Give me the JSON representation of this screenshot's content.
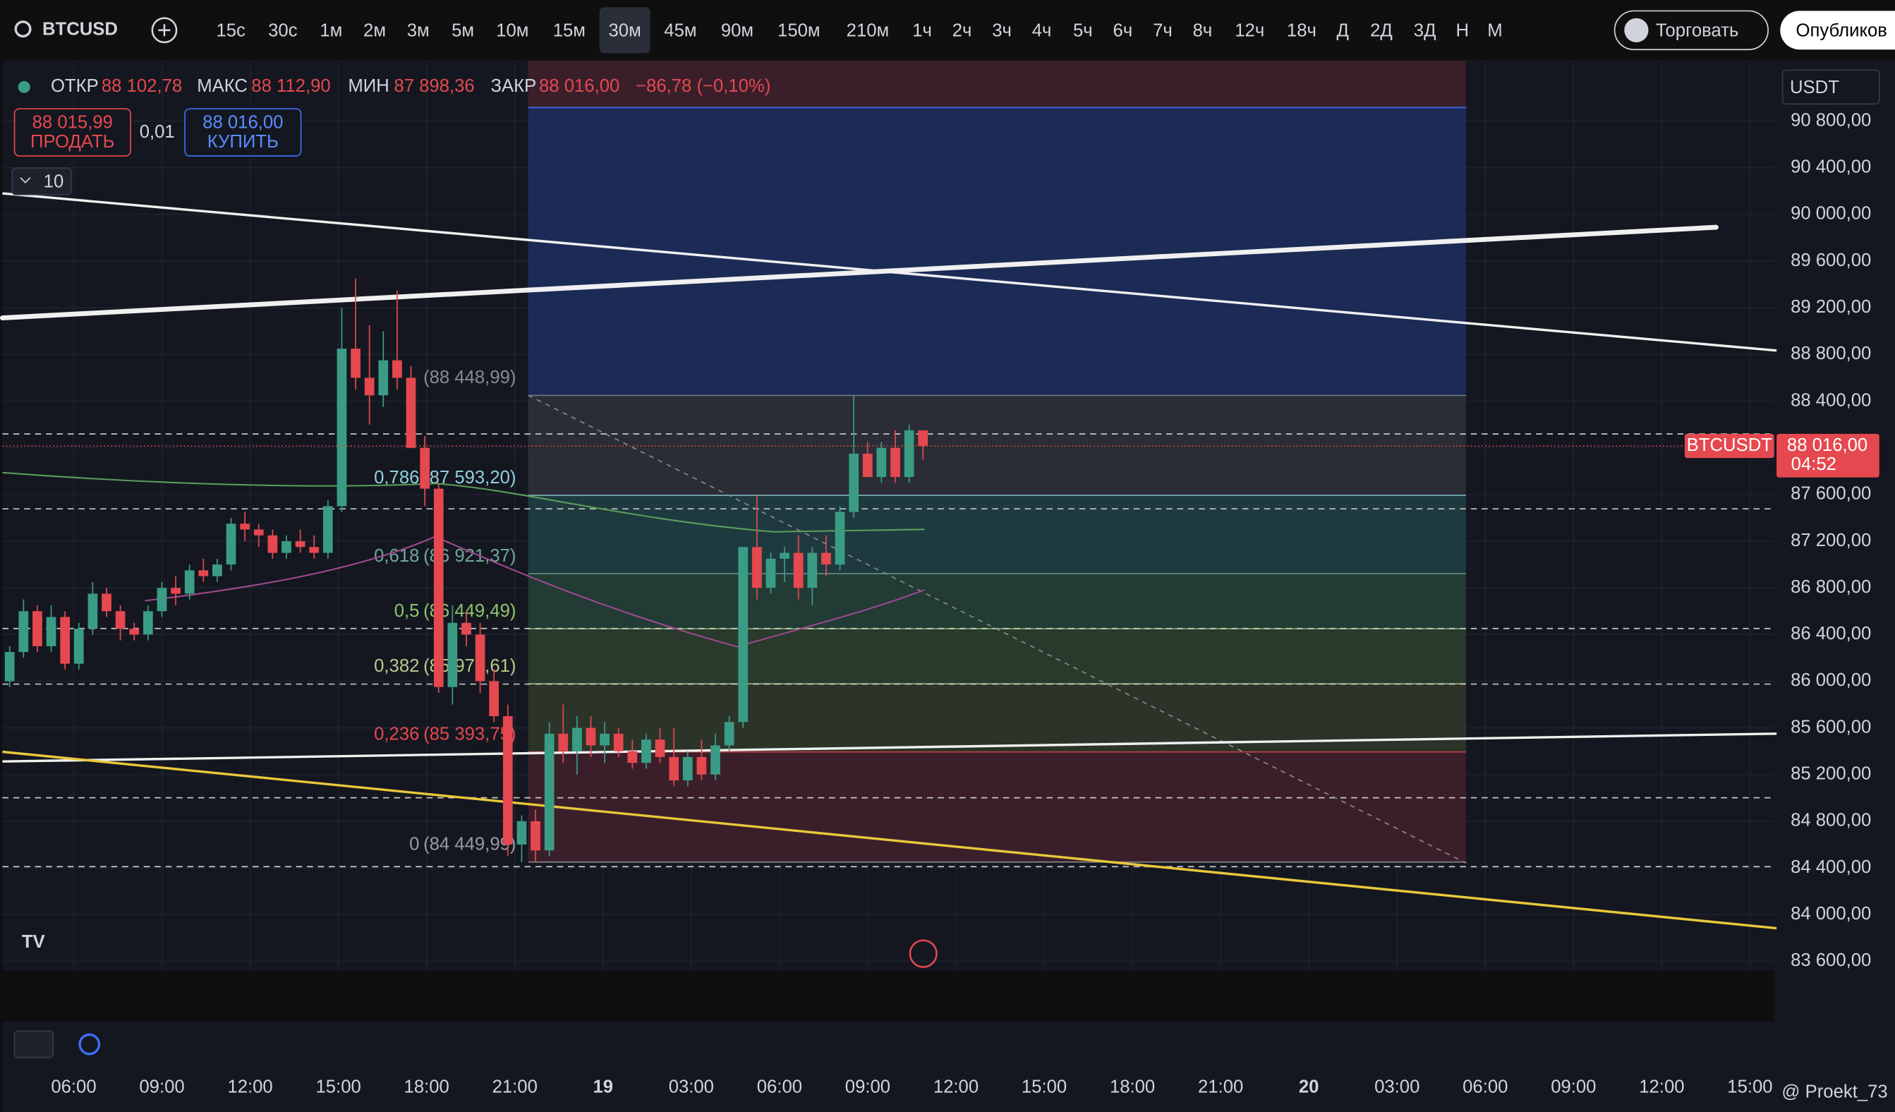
{
  "toolbar": {
    "symbol": "BTCUSD",
    "intervals": [
      "15с",
      "30с",
      "1м",
      "2м",
      "3м",
      "5м",
      "10м",
      "15м",
      "30м",
      "45м",
      "90м",
      "150м",
      "210м",
      "1ч",
      "2ч",
      "3ч",
      "4ч",
      "5ч",
      "6ч",
      "7ч",
      "8ч",
      "12ч",
      "18ч",
      "Д",
      "2Д",
      "3Д",
      "Н",
      "М"
    ],
    "active_interval": 8,
    "trade_button": "Торговать",
    "publish_button": "Опубликов"
  },
  "legend": {
    "open_label": "ОТКР",
    "open": "88 102,78",
    "high_label": "МАКС",
    "high": "88 112,90",
    "low_label": "МИН",
    "low": "87 898,36",
    "close_label": "ЗАКР",
    "close": "88 016,00",
    "change": "−86,78 (−0,10%)"
  },
  "order": {
    "sell_price": "88 015,99",
    "sell_label": "ПРОДАТЬ",
    "spread": "0,01",
    "buy_price": "88 016,00",
    "buy_label": "КУПИТЬ"
  },
  "indicators_count": "10",
  "currency": "USDT",
  "price_badge": {
    "symbol": "BTCUSDT",
    "price": {
      "value": 88016,
      "label": "88 016,00"
    },
    "countdown": "04:52"
  },
  "footer": {
    "credit": "@ Proekt_73"
  },
  "chart_data": {
    "type": "candlestick",
    "open": [
      86000,
      86250,
      86600,
      86300,
      86550,
      86150,
      86450,
      86750,
      86600,
      86450,
      86400,
      86600,
      86800,
      86750,
      86950,
      86900,
      87000,
      87350,
      87300,
      87250,
      87100,
      87200,
      87150,
      87100,
      87500,
      88850,
      88600,
      88450,
      88750,
      88600,
      88000,
      87650,
      85950,
      86500,
      86400,
      86000,
      85700,
      84600,
      84800,
      84550,
      85550,
      85400,
      85600,
      85450,
      85550,
      85400,
      85300,
      85500,
      85350,
      85150,
      85350,
      85200,
      85450,
      85650,
      87150,
      86800,
      87050,
      87100,
      86800,
      87100,
      87000,
      87450,
      87950,
      87750,
      88000,
      87750,
      88150
    ],
    "high": [
      86300,
      86700,
      86650,
      86650,
      86600,
      86500,
      86850,
      86800,
      86650,
      86500,
      86650,
      86850,
      86900,
      87000,
      87050,
      87050,
      87400,
      87450,
      87350,
      87300,
      87250,
      87300,
      87250,
      87550,
      89200,
      89450,
      89050,
      89000,
      89350,
      88700,
      88100,
      87700,
      86650,
      86600,
      86500,
      86100,
      85800,
      84850,
      84900,
      85650,
      85800,
      85700,
      85700,
      85650,
      85600,
      85500,
      85550,
      85600,
      85600,
      85400,
      85500,
      85550,
      85700,
      87150,
      87600,
      87100,
      87150,
      87250,
      87150,
      87250,
      87500,
      88450,
      88050,
      88050,
      88150,
      88200,
      88150
    ],
    "low": [
      85950,
      86200,
      86250,
      86250,
      86100,
      86100,
      86400,
      86550,
      86350,
      86350,
      86350,
      86550,
      86650,
      86700,
      86850,
      86850,
      86950,
      87200,
      87150,
      87050,
      87050,
      87100,
      87050,
      87050,
      87450,
      88500,
      88200,
      88350,
      88500,
      88000,
      87500,
      85900,
      85800,
      86300,
      85900,
      85650,
      84500,
      84450,
      84450,
      84500,
      85300,
      85200,
      85350,
      85300,
      85350,
      85250,
      85250,
      85300,
      85100,
      85100,
      85150,
      85150,
      85400,
      85600,
      86700,
      86750,
      86850,
      86700,
      86650,
      86900,
      86950,
      87400,
      87750,
      87700,
      87700,
      87700,
      87900
    ],
    "close": [
      86250,
      86600,
      86300,
      86550,
      86150,
      86450,
      86750,
      86600,
      86450,
      86400,
      86600,
      86800,
      86750,
      86950,
      86900,
      87000,
      87350,
      87300,
      87250,
      87100,
      87200,
      87150,
      87100,
      87500,
      88850,
      88600,
      88450,
      88750,
      88600,
      88000,
      87650,
      85950,
      86500,
      86400,
      86000,
      85700,
      84600,
      84800,
      84550,
      85550,
      85400,
      85600,
      85450,
      85550,
      85400,
      85300,
      85500,
      85350,
      85150,
      85350,
      85200,
      85450,
      85650,
      87150,
      86800,
      87050,
      87100,
      86800,
      87100,
      87000,
      87450,
      87950,
      87750,
      88000,
      87750,
      88150,
      88016
    ],
    "up_color": "#3a9c85",
    "down_color": "#e5484f",
    "ylim": [
      83520,
      91320
    ],
    "yticks": [
      {
        "value": 90800,
        "label": "90 800,00"
      },
      {
        "value": 90400,
        "label": "90 400,00"
      },
      {
        "value": 90000,
        "label": "90 000,00"
      },
      {
        "value": 89600,
        "label": "89 600,00"
      },
      {
        "value": 89200,
        "label": "89 200,00"
      },
      {
        "value": 88800,
        "label": "88 800,00"
      },
      {
        "value": 88400,
        "label": "88 400,00"
      },
      {
        "value": 88000,
        "label": "88 000,00"
      },
      {
        "value": 87600,
        "label": "87 600,00"
      },
      {
        "value": 87200,
        "label": "87 200,00"
      },
      {
        "value": 86800,
        "label": "86 800,00"
      },
      {
        "value": 86400,
        "label": "86 400,00"
      },
      {
        "value": 86000,
        "label": "86 000,00"
      },
      {
        "value": 85600,
        "label": "85 600,00"
      },
      {
        "value": 85200,
        "label": "85 200,00"
      },
      {
        "value": 84800,
        "label": "84 800,00"
      },
      {
        "value": 84400,
        "label": "84 400,00"
      },
      {
        "value": 84000,
        "label": "84 000,00"
      },
      {
        "value": 83600,
        "label": "83 600,00"
      }
    ],
    "x_labels": [
      "06:00",
      "09:00",
      "12:00",
      "15:00",
      "18:00",
      "21:00",
      "19",
      "03:00",
      "06:00",
      "09:00",
      "12:00",
      "15:00",
      "18:00",
      "21:00",
      "20",
      "03:00",
      "06:00",
      "09:00",
      "12:00",
      "15:00"
    ],
    "fib_levels": [
      {
        "ratio": "0",
        "price": {
          "value": 84449.99,
          "label": "(84 449,99)"
        },
        "color": "#3a1f2b",
        "text_color": "#9a9aa0"
      },
      {
        "ratio": "0,236",
        "price": {
          "value": 85393.75,
          "label": "(85 393,75)"
        },
        "color": "#2c3329",
        "text_color": "#e5484f"
      },
      {
        "ratio": "0,382",
        "price": {
          "value": 85977.61,
          "label": "(85 977,61)"
        },
        "color": "#293a2d",
        "text_color": "#b8c98a"
      },
      {
        "ratio": "0,5",
        "price": {
          "value": 86449.49,
          "label": "(86 449,49)"
        },
        "color": "#223b34",
        "text_color": "#8fc46a"
      },
      {
        "ratio": "0,618",
        "price": {
          "value": 86921.37,
          "label": "(86 921,37)"
        },
        "color": "#1f3a3f",
        "text_color": "#6fa89c"
      },
      {
        "ratio": "0,786",
        "price": {
          "value": 87593.2,
          "label": "(87 593,20)"
        },
        "color": "#2a2d35",
        "text_color": "#8fd0dc"
      },
      {
        "ratio": "",
        "price": {
          "value": 88448.99,
          "label": "(88 448,99)"
        },
        "color": "#1c2b55",
        "text_color": "#8a8a92"
      }
    ]
  }
}
